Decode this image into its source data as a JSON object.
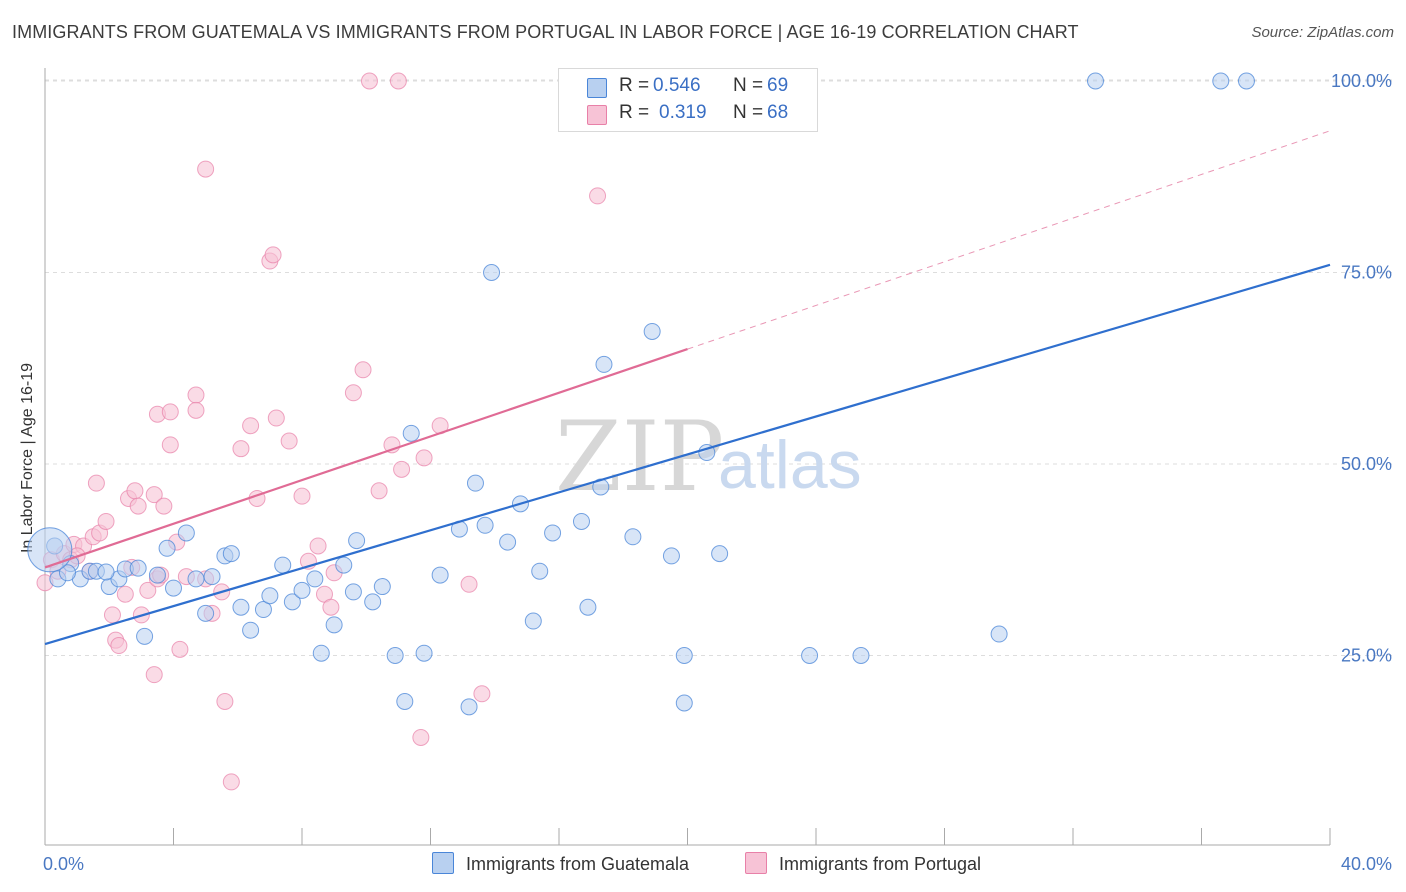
{
  "title": "IMMIGRANTS FROM GUATEMALA VS IMMIGRANTS FROM PORTUGAL IN LABOR FORCE | AGE 16-19 CORRELATION CHART",
  "source": "Source: ZipAtlas.com",
  "watermark": {
    "zip": "ZIP",
    "atlas": "atlas"
  },
  "colors": {
    "blue": "#4a86d8",
    "blue_fill": "#b8d0f0",
    "blue_line": "#2f6fce",
    "pink": "#e880a8",
    "pink_fill": "#f7c3d6",
    "pink_line": "#e06b95",
    "grid": "#dddddd",
    "tick_text": "#4a78c2"
  },
  "legend": {
    "row1": {
      "r_label": "R =",
      "r_value": "0.546",
      "n_label": "N =",
      "n_value": "69"
    },
    "row2": {
      "r_label": "R =",
      "r_value": "0.319",
      "n_label": "N =",
      "n_value": "68"
    }
  },
  "bottom_legend": {
    "series1": "Immigrants from Guatemala",
    "series2": "Immigrants from Portugal"
  },
  "chart_data": {
    "type": "scatter",
    "title": "IMMIGRANTS FROM GUATEMALA VS IMMIGRANTS FROM PORTUGAL IN LABOR FORCE | AGE 16-19 CORRELATION CHART",
    "xlabel": "",
    "ylabel": "In Labor Force | Age 16-19",
    "xlim": [
      0,
      40
    ],
    "ylim": [
      0,
      102
    ],
    "x_tick_labels": [
      "0.0%",
      "40.0%"
    ],
    "y_ticks": [
      25,
      50,
      75,
      100
    ],
    "y_tick_labels": [
      "25.0%",
      "50.0%",
      "75.0%",
      "100.0%"
    ],
    "series": [
      {
        "name": "Immigrants from Guatemala",
        "color": "#4a86d8",
        "trend": {
          "x0": 0,
          "y0": 26.5,
          "x1": 40,
          "y1": 76.0,
          "dashed_from": null
        },
        "points": [
          [
            0.3,
            39.3
          ],
          [
            0.4,
            35.0
          ],
          [
            0.8,
            37.0
          ],
          [
            1.1,
            35.0
          ],
          [
            1.4,
            36.0
          ],
          [
            1.6,
            36.0
          ],
          [
            2.0,
            34.0
          ],
          [
            2.3,
            35.0
          ],
          [
            2.5,
            36.3
          ],
          [
            2.9,
            36.4
          ],
          [
            3.1,
            27.5
          ],
          [
            3.5,
            35.5
          ],
          [
            3.8,
            39.0
          ],
          [
            4.0,
            33.8
          ],
          [
            4.4,
            41.0
          ],
          [
            4.7,
            35.0
          ],
          [
            5.0,
            30.5
          ],
          [
            5.2,
            35.3
          ],
          [
            5.6,
            38.0
          ],
          [
            5.8,
            38.3
          ],
          [
            6.1,
            31.3
          ],
          [
            6.4,
            28.3
          ],
          [
            6.8,
            31.0
          ],
          [
            7.0,
            32.8
          ],
          [
            7.4,
            36.8
          ],
          [
            7.7,
            32.0
          ],
          [
            8.0,
            33.5
          ],
          [
            8.4,
            35.0
          ],
          [
            8.6,
            25.3
          ],
          [
            9.0,
            29.0
          ],
          [
            9.3,
            36.8
          ],
          [
            9.6,
            33.3
          ],
          [
            9.7,
            40.0
          ],
          [
            10.2,
            32.0
          ],
          [
            10.5,
            34.0
          ],
          [
            10.9,
            25.0
          ],
          [
            11.2,
            19.0
          ],
          [
            11.4,
            54.0
          ],
          [
            11.8,
            25.3
          ],
          [
            12.3,
            35.5
          ],
          [
            12.9,
            41.5
          ],
          [
            13.2,
            18.3
          ],
          [
            13.4,
            47.5
          ],
          [
            13.7,
            42.0
          ],
          [
            13.9,
            75.0
          ],
          [
            14.4,
            39.8
          ],
          [
            14.8,
            44.8
          ],
          [
            15.2,
            29.5
          ],
          [
            15.4,
            36.0
          ],
          [
            15.8,
            41.0
          ],
          [
            16.7,
            42.5
          ],
          [
            16.9,
            31.3
          ],
          [
            17.3,
            47.0
          ],
          [
            17.4,
            63.0
          ],
          [
            18.3,
            40.5
          ],
          [
            18.9,
            67.3
          ],
          [
            19.5,
            38.0
          ],
          [
            19.9,
            25.0
          ],
          [
            19.9,
            18.8
          ],
          [
            20.6,
            51.5
          ],
          [
            21.0,
            38.3
          ],
          [
            23.8,
            25.0
          ],
          [
            25.4,
            25.0
          ],
          [
            29.7,
            27.8
          ],
          [
            32.7,
            100.0
          ],
          [
            36.6,
            100.0
          ],
          [
            37.4,
            100.0
          ],
          [
            0.7,
            35.8
          ],
          [
            1.9,
            35.9
          ]
        ],
        "large_point": [
          0.15,
          38.8
        ]
      },
      {
        "name": "Immigrants from Portugal",
        "color": "#e880a8",
        "trend": {
          "x0": 0,
          "y0": 36.5,
          "x1": 40,
          "y1": 93.5,
          "dashed_from": 20.0
        },
        "points": [
          [
            0.0,
            34.5
          ],
          [
            0.2,
            37.5
          ],
          [
            0.4,
            36.0
          ],
          [
            0.6,
            38.3
          ],
          [
            0.8,
            37.5
          ],
          [
            0.9,
            39.5
          ],
          [
            1.2,
            39.3
          ],
          [
            1.4,
            36.0
          ],
          [
            1.5,
            40.5
          ],
          [
            1.6,
            47.5
          ],
          [
            1.7,
            41.0
          ],
          [
            1.9,
            42.5
          ],
          [
            2.1,
            30.3
          ],
          [
            2.2,
            27.0
          ],
          [
            2.3,
            26.3
          ],
          [
            2.5,
            33.0
          ],
          [
            2.6,
            45.5
          ],
          [
            2.7,
            36.5
          ],
          [
            2.8,
            46.5
          ],
          [
            2.9,
            44.5
          ],
          [
            3.0,
            30.3
          ],
          [
            3.2,
            33.5
          ],
          [
            3.4,
            22.5
          ],
          [
            3.4,
            46.0
          ],
          [
            3.5,
            35.0
          ],
          [
            3.7,
            44.5
          ],
          [
            3.5,
            56.5
          ],
          [
            3.9,
            56.8
          ],
          [
            3.9,
            52.5
          ],
          [
            4.1,
            39.8
          ],
          [
            4.2,
            25.8
          ],
          [
            4.4,
            35.3
          ],
          [
            4.7,
            59.0
          ],
          [
            4.7,
            57.0
          ],
          [
            5.0,
            35.0
          ],
          [
            5.2,
            30.5
          ],
          [
            5.5,
            33.3
          ],
          [
            5.6,
            19.0
          ],
          [
            6.1,
            52.0
          ],
          [
            6.4,
            55.0
          ],
          [
            6.6,
            45.5
          ],
          [
            7.0,
            76.5
          ],
          [
            7.1,
            77.3
          ],
          [
            7.2,
            56.0
          ],
          [
            7.6,
            53.0
          ],
          [
            8.0,
            45.8
          ],
          [
            8.2,
            37.3
          ],
          [
            8.5,
            39.3
          ],
          [
            8.7,
            33.0
          ],
          [
            8.9,
            31.3
          ],
          [
            9.0,
            35.8
          ],
          [
            9.6,
            59.3
          ],
          [
            9.9,
            62.3
          ],
          [
            10.4,
            46.5
          ],
          [
            10.8,
            52.5
          ],
          [
            11.1,
            49.3
          ],
          [
            11.7,
            14.3
          ],
          [
            11.8,
            50.8
          ],
          [
            12.3,
            55.0
          ],
          [
            13.2,
            34.3
          ],
          [
            13.6,
            20.0
          ],
          [
            17.2,
            85.0
          ],
          [
            5.0,
            88.5
          ],
          [
            10.1,
            100.0
          ],
          [
            11.0,
            100.0
          ],
          [
            5.8,
            8.5
          ],
          [
            3.6,
            35.5
          ],
          [
            1.0,
            38.0
          ]
        ]
      }
    ]
  }
}
